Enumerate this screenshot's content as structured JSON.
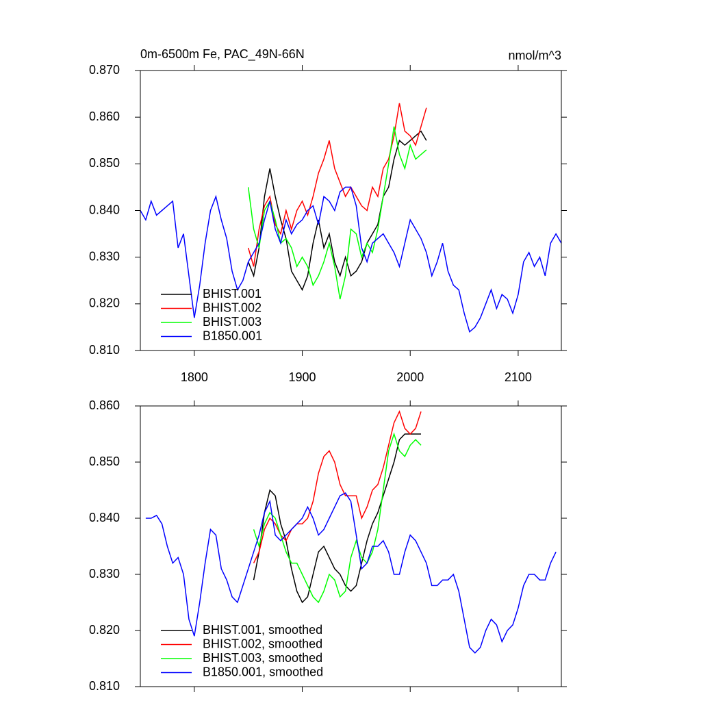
{
  "chart_data": [
    {
      "type": "line",
      "title": "0m-6500m Fe, PAC_49N-66N",
      "units": "nmol/m^3",
      "xlim": [
        1750,
        2140
      ],
      "ylim": [
        0.81,
        0.87
      ],
      "xticks": [
        1800,
        1900,
        2000,
        2100
      ],
      "yticks": [
        {
          "value": 0.81,
          "label": "0.810"
        },
        {
          "value": 0.82,
          "label": "0.820"
        },
        {
          "value": 0.83,
          "label": "0.830"
        },
        {
          "value": 0.84,
          "label": "0.840"
        },
        {
          "value": 0.85,
          "label": "0.850"
        },
        {
          "value": 0.86,
          "label": "0.860"
        },
        {
          "value": 0.87,
          "label": "0.870"
        }
      ],
      "show_xtick_labels": true,
      "legend": "lower left",
      "series": [
        {
          "name": "BHIST.001",
          "color": "#000000",
          "x": [
            1850,
            1855,
            1860,
            1865,
            1870,
            1875,
            1880,
            1885,
            1890,
            1895,
            1900,
            1905,
            1910,
            1915,
            1920,
            1925,
            1930,
            1935,
            1940,
            1945,
            1950,
            1955,
            1960,
            1965,
            1970,
            1975,
            1980,
            1985,
            1990,
            1995,
            2000,
            2005,
            2010,
            2015
          ],
          "values": [
            0.829,
            0.826,
            0.832,
            0.843,
            0.849,
            0.843,
            0.838,
            0.834,
            0.827,
            0.825,
            0.823,
            0.826,
            0.833,
            0.838,
            0.832,
            0.835,
            0.829,
            0.826,
            0.83,
            0.826,
            0.827,
            0.829,
            0.833,
            0.835,
            0.837,
            0.843,
            0.845,
            0.851,
            0.855,
            0.854,
            0.855,
            0.856,
            0.857,
            0.855
          ]
        },
        {
          "name": "BHIST.002",
          "color": "#ff0000",
          "x": [
            1850,
            1855,
            1860,
            1865,
            1870,
            1875,
            1880,
            1885,
            1890,
            1895,
            1900,
            1905,
            1910,
            1915,
            1920,
            1925,
            1930,
            1935,
            1940,
            1945,
            1950,
            1955,
            1960,
            1965,
            1970,
            1975,
            1980,
            1985,
            1990,
            1995,
            2000,
            2005,
            2010,
            2015
          ],
          "values": [
            0.832,
            0.828,
            0.836,
            0.841,
            0.843,
            0.837,
            0.835,
            0.84,
            0.836,
            0.84,
            0.842,
            0.839,
            0.843,
            0.848,
            0.851,
            0.855,
            0.849,
            0.846,
            0.843,
            0.845,
            0.843,
            0.841,
            0.84,
            0.845,
            0.843,
            0.849,
            0.851,
            0.856,
            0.863,
            0.857,
            0.856,
            0.854,
            0.858,
            0.862
          ]
        },
        {
          "name": "BHIST.003",
          "color": "#00ff00",
          "x": [
            1850,
            1855,
            1860,
            1865,
            1870,
            1875,
            1880,
            1885,
            1890,
            1895,
            1900,
            1905,
            1910,
            1915,
            1920,
            1925,
            1930,
            1935,
            1940,
            1945,
            1950,
            1955,
            1960,
            1965,
            1970,
            1975,
            1980,
            1985,
            1990,
            1995,
            2000,
            2005,
            2010,
            2015
          ],
          "values": [
            0.845,
            0.836,
            0.832,
            0.84,
            0.842,
            0.838,
            0.833,
            0.834,
            0.832,
            0.828,
            0.83,
            0.828,
            0.824,
            0.826,
            0.829,
            0.833,
            0.828,
            0.821,
            0.826,
            0.836,
            0.835,
            0.83,
            0.833,
            0.831,
            0.836,
            0.843,
            0.85,
            0.858,
            0.852,
            0.849,
            0.854,
            0.851,
            0.852,
            0.853
          ]
        },
        {
          "name": "B1850.001",
          "color": "#0000ff",
          "x": [
            1750,
            1755,
            1760,
            1765,
            1770,
            1775,
            1780,
            1785,
            1790,
            1795,
            1800,
            1805,
            1810,
            1815,
            1820,
            1825,
            1830,
            1835,
            1840,
            1845,
            1850,
            1855,
            1860,
            1865,
            1870,
            1875,
            1880,
            1885,
            1890,
            1895,
            1900,
            1905,
            1910,
            1915,
            1920,
            1925,
            1930,
            1935,
            1940,
            1945,
            1950,
            1955,
            1960,
            1965,
            1970,
            1975,
            1980,
            1985,
            1990,
            1995,
            2000,
            2005,
            2010,
            2015,
            2020,
            2025,
            2030,
            2035,
            2040,
            2045,
            2050,
            2055,
            2060,
            2065,
            2070,
            2075,
            2080,
            2085,
            2090,
            2095,
            2100,
            2105,
            2110,
            2115,
            2120,
            2125,
            2130,
            2135,
            2140
          ],
          "values": [
            0.84,
            0.838,
            0.842,
            0.839,
            0.84,
            0.841,
            0.842,
            0.832,
            0.835,
            0.826,
            0.817,
            0.824,
            0.833,
            0.84,
            0.843,
            0.838,
            0.834,
            0.827,
            0.823,
            0.825,
            0.829,
            0.831,
            0.833,
            0.838,
            0.842,
            0.836,
            0.833,
            0.838,
            0.835,
            0.837,
            0.838,
            0.84,
            0.841,
            0.837,
            0.843,
            0.842,
            0.84,
            0.844,
            0.845,
            0.845,
            0.841,
            0.832,
            0.829,
            0.833,
            0.834,
            0.835,
            0.833,
            0.831,
            0.828,
            0.833,
            0.838,
            0.836,
            0.834,
            0.831,
            0.826,
            0.829,
            0.833,
            0.827,
            0.824,
            0.823,
            0.818,
            0.814,
            0.815,
            0.817,
            0.82,
            0.823,
            0.819,
            0.822,
            0.821,
            0.818,
            0.822,
            0.829,
            0.831,
            0.828,
            0.83,
            0.826,
            0.833,
            0.835,
            0.833
          ]
        }
      ]
    },
    {
      "type": "line",
      "xlim": [
        1750,
        2140
      ],
      "ylim": [
        0.81,
        0.86
      ],
      "xticks": [
        1800,
        1900,
        2000,
        2100
      ],
      "yticks": [
        {
          "value": 0.81,
          "label": "0.810"
        },
        {
          "value": 0.82,
          "label": "0.820"
        },
        {
          "value": 0.83,
          "label": "0.830"
        },
        {
          "value": 0.84,
          "label": "0.840"
        },
        {
          "value": 0.85,
          "label": "0.850"
        },
        {
          "value": 0.86,
          "label": "0.860"
        }
      ],
      "show_xtick_labels": false,
      "legend": "lower left",
      "series": [
        {
          "name": "BHIST.001, smoothed",
          "color": "#000000",
          "x": [
            1855,
            1860,
            1865,
            1870,
            1875,
            1880,
            1885,
            1890,
            1895,
            1900,
            1905,
            1910,
            1915,
            1920,
            1925,
            1930,
            1935,
            1940,
            1945,
            1950,
            1955,
            1960,
            1965,
            1970,
            1975,
            1980,
            1985,
            1990,
            1995,
            2000,
            2005,
            2010
          ],
          "values": [
            0.829,
            0.834,
            0.841,
            0.845,
            0.844,
            0.839,
            0.836,
            0.831,
            0.827,
            0.825,
            0.826,
            0.83,
            0.834,
            0.835,
            0.833,
            0.831,
            0.83,
            0.828,
            0.827,
            0.828,
            0.832,
            0.836,
            0.839,
            0.841,
            0.844,
            0.847,
            0.85,
            0.854,
            0.855,
            0.855,
            0.855,
            0.855
          ]
        },
        {
          "name": "BHIST.002, smoothed",
          "color": "#ff0000",
          "x": [
            1855,
            1860,
            1865,
            1870,
            1875,
            1880,
            1885,
            1890,
            1895,
            1900,
            1905,
            1910,
            1915,
            1920,
            1925,
            1930,
            1935,
            1940,
            1945,
            1950,
            1955,
            1960,
            1965,
            1970,
            1975,
            1980,
            1985,
            1990,
            1995,
            2000,
            2005,
            2010
          ],
          "values": [
            0.832,
            0.834,
            0.838,
            0.84,
            0.839,
            0.837,
            0.836,
            0.838,
            0.839,
            0.839,
            0.84,
            0.843,
            0.848,
            0.851,
            0.852,
            0.85,
            0.846,
            0.844,
            0.844,
            0.844,
            0.84,
            0.842,
            0.845,
            0.846,
            0.849,
            0.853,
            0.857,
            0.859,
            0.856,
            0.855,
            0.856,
            0.859
          ]
        },
        {
          "name": "BHIST.003, smoothed",
          "color": "#00ff00",
          "x": [
            1855,
            1860,
            1865,
            1870,
            1875,
            1880,
            1885,
            1890,
            1895,
            1900,
            1905,
            1910,
            1915,
            1920,
            1925,
            1930,
            1935,
            1940,
            1945,
            1950,
            1955,
            1960,
            1965,
            1970,
            1975,
            1980,
            1985,
            1990,
            1995,
            2000,
            2005,
            2010
          ],
          "values": [
            0.838,
            0.835,
            0.839,
            0.841,
            0.84,
            0.837,
            0.834,
            0.832,
            0.832,
            0.83,
            0.828,
            0.826,
            0.825,
            0.827,
            0.83,
            0.829,
            0.826,
            0.827,
            0.833,
            0.836,
            0.833,
            0.832,
            0.834,
            0.838,
            0.845,
            0.852,
            0.855,
            0.852,
            0.851,
            0.853,
            0.854,
            0.853
          ]
        },
        {
          "name": "B1850.001, smoothed",
          "color": "#0000ff",
          "x": [
            1755,
            1760,
            1765,
            1770,
            1775,
            1780,
            1785,
            1790,
            1795,
            1800,
            1805,
            1810,
            1815,
            1820,
            1825,
            1830,
            1835,
            1840,
            1845,
            1850,
            1855,
            1860,
            1865,
            1870,
            1875,
            1880,
            1885,
            1890,
            1895,
            1900,
            1905,
            1910,
            1915,
            1920,
            1925,
            1930,
            1935,
            1940,
            1945,
            1950,
            1955,
            1960,
            1965,
            1970,
            1975,
            1980,
            1985,
            1990,
            1995,
            2000,
            2005,
            2010,
            2015,
            2020,
            2025,
            2030,
            2035,
            2040,
            2045,
            2050,
            2055,
            2060,
            2065,
            2070,
            2075,
            2080,
            2085,
            2090,
            2095,
            2100,
            2105,
            2110,
            2115,
            2120,
            2125,
            2130,
            2135
          ],
          "values": [
            0.84,
            0.84,
            0.8405,
            0.839,
            0.835,
            0.832,
            0.833,
            0.83,
            0.822,
            0.819,
            0.825,
            0.832,
            0.838,
            0.837,
            0.831,
            0.829,
            0.826,
            0.825,
            0.828,
            0.831,
            0.834,
            0.837,
            0.841,
            0.843,
            0.837,
            0.836,
            0.837,
            0.838,
            0.839,
            0.84,
            0.842,
            0.84,
            0.837,
            0.838,
            0.84,
            0.842,
            0.844,
            0.8445,
            0.843,
            0.837,
            0.831,
            0.832,
            0.835,
            0.835,
            0.836,
            0.834,
            0.83,
            0.83,
            0.834,
            0.837,
            0.836,
            0.834,
            0.832,
            0.828,
            0.828,
            0.829,
            0.829,
            0.83,
            0.827,
            0.822,
            0.817,
            0.816,
            0.817,
            0.82,
            0.822,
            0.821,
            0.818,
            0.82,
            0.821,
            0.824,
            0.828,
            0.83,
            0.83,
            0.829,
            0.829,
            0.832,
            0.834
          ]
        }
      ]
    }
  ]
}
